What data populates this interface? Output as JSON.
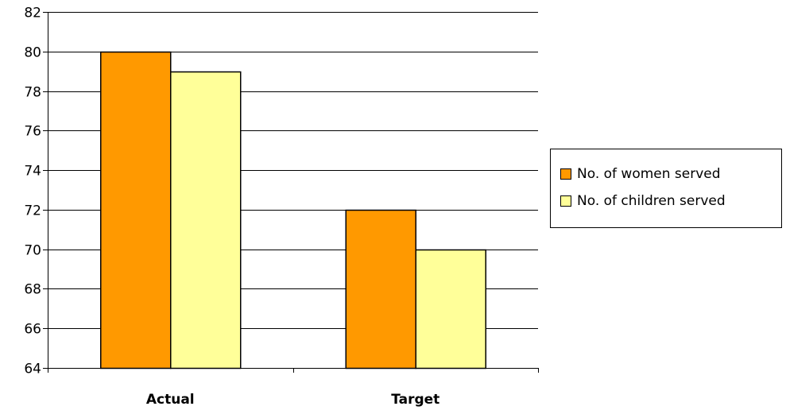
{
  "chart_data": {
    "type": "bar",
    "categories": [
      "Actual",
      "Target"
    ],
    "series": [
      {
        "name": "No. of women served",
        "values": [
          80,
          72
        ],
        "color": "#FF9900"
      },
      {
        "name": "No. of children served",
        "values": [
          79,
          70
        ],
        "color": "#FFFF99"
      }
    ],
    "ylim": [
      64,
      82
    ],
    "yticks": [
      64,
      66,
      68,
      70,
      72,
      74,
      76,
      78,
      80,
      82
    ],
    "title": "",
    "xlabel": "",
    "ylabel": "",
    "grid": true,
    "legend_position": "right",
    "colors": {
      "gridline": "#000000",
      "bar_outline": "#000000"
    }
  }
}
